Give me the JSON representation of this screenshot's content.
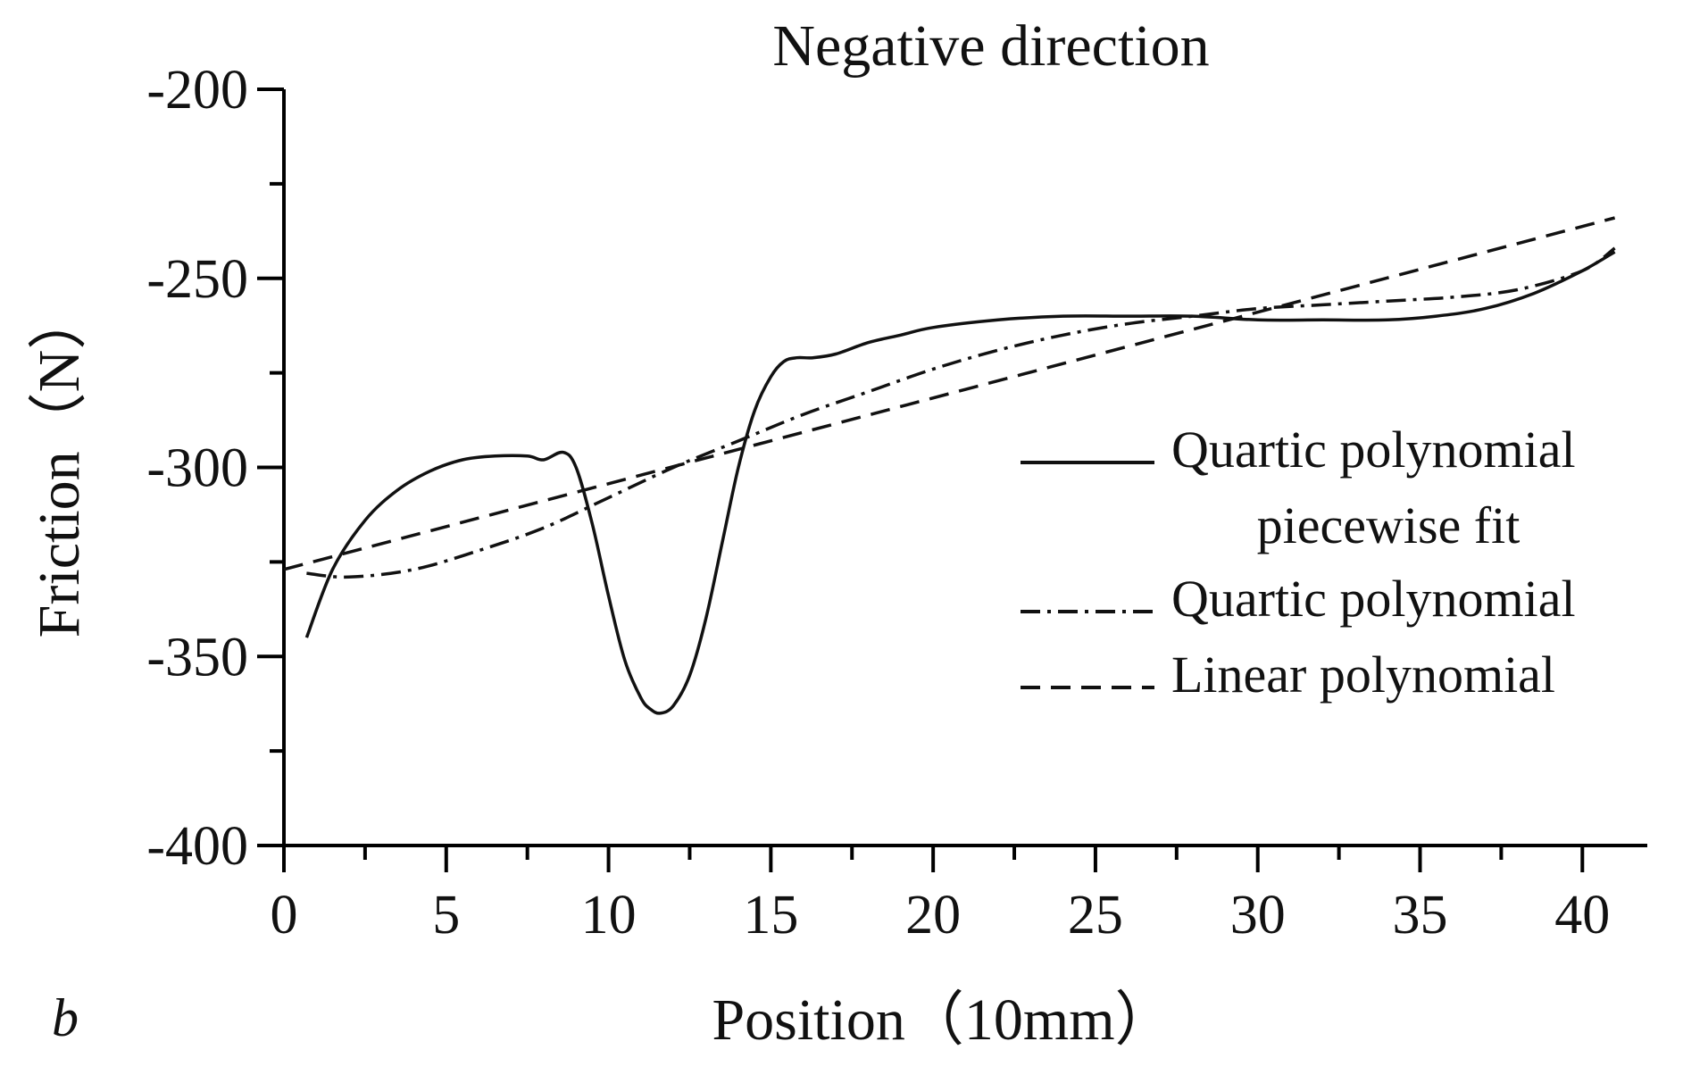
{
  "chart_data": {
    "type": "line",
    "title": "Negative direction",
    "panel_label": "b",
    "xlabel": "Position（10mm）",
    "ylabel": "Friction（N）",
    "xlim": [
      0,
      42
    ],
    "ylim": [
      -400,
      -200
    ],
    "x_ticks": [
      0,
      5,
      10,
      15,
      20,
      25,
      30,
      35,
      40
    ],
    "y_ticks": [
      -400,
      -350,
      -300,
      -250,
      -200
    ],
    "x_tick_labels": [
      "0",
      "5",
      "10",
      "15",
      "20",
      "25",
      "30",
      "35",
      "40"
    ],
    "y_tick_labels": [
      "-400",
      "-350",
      "-300",
      "-250",
      "-200"
    ],
    "legend_position": "right",
    "series": [
      {
        "name": "Quartic polynomial piecewise fit",
        "legend_lines": [
          "Quartic polynomial",
          "piecewise fit"
        ],
        "style": "solid",
        "x": [
          0.7,
          1.5,
          2.5,
          3.5,
          4.5,
          5.5,
          6.5,
          7.5,
          8.0,
          8.6,
          9.0,
          9.5,
          10.0,
          10.5,
          11.0,
          11.3,
          11.6,
          12.0,
          12.5,
          13.0,
          13.5,
          14.0,
          14.5,
          15.0,
          15.4,
          15.8,
          16.3,
          17.0,
          18.0,
          19.0,
          20.0,
          22.0,
          24.0,
          26.0,
          28.0,
          30.0,
          32.0,
          34.0,
          35.5,
          37.0,
          38.5,
          40.0,
          41.0
        ],
        "y": [
          -345,
          -327,
          -314,
          -306,
          -301,
          -298,
          -297,
          -297,
          -298,
          -296,
          -300,
          -315,
          -334,
          -351,
          -361,
          -364,
          -365,
          -363,
          -355,
          -340,
          -320,
          -300,
          -285,
          -276,
          -272,
          -271,
          -271,
          -270,
          -267,
          -265,
          -263,
          -261,
          -260,
          -260,
          -260,
          -261,
          -261,
          -261,
          -260,
          -258,
          -254,
          -248,
          -243
        ]
      },
      {
        "name": "Quartic polynomial",
        "legend_lines": [
          "Quartic polynomial"
        ],
        "style": "dashdot",
        "x": [
          0.7,
          2,
          4,
          6,
          8,
          10,
          12,
          14,
          16,
          18,
          20,
          22,
          24,
          26,
          28,
          30,
          32,
          34,
          36,
          38,
          40,
          41
        ],
        "y": [
          -328,
          -329,
          -327,
          -322,
          -316,
          -308,
          -300,
          -293,
          -286,
          -280,
          -274,
          -269,
          -265,
          -262,
          -260,
          -258,
          -257,
          -256,
          -255,
          -253,
          -248,
          -242
        ]
      },
      {
        "name": "Linear polynomial",
        "legend_lines": [
          "Linear polynomial"
        ],
        "style": "dashed",
        "x": [
          0,
          41
        ],
        "y": [
          -327,
          -234
        ]
      }
    ]
  }
}
